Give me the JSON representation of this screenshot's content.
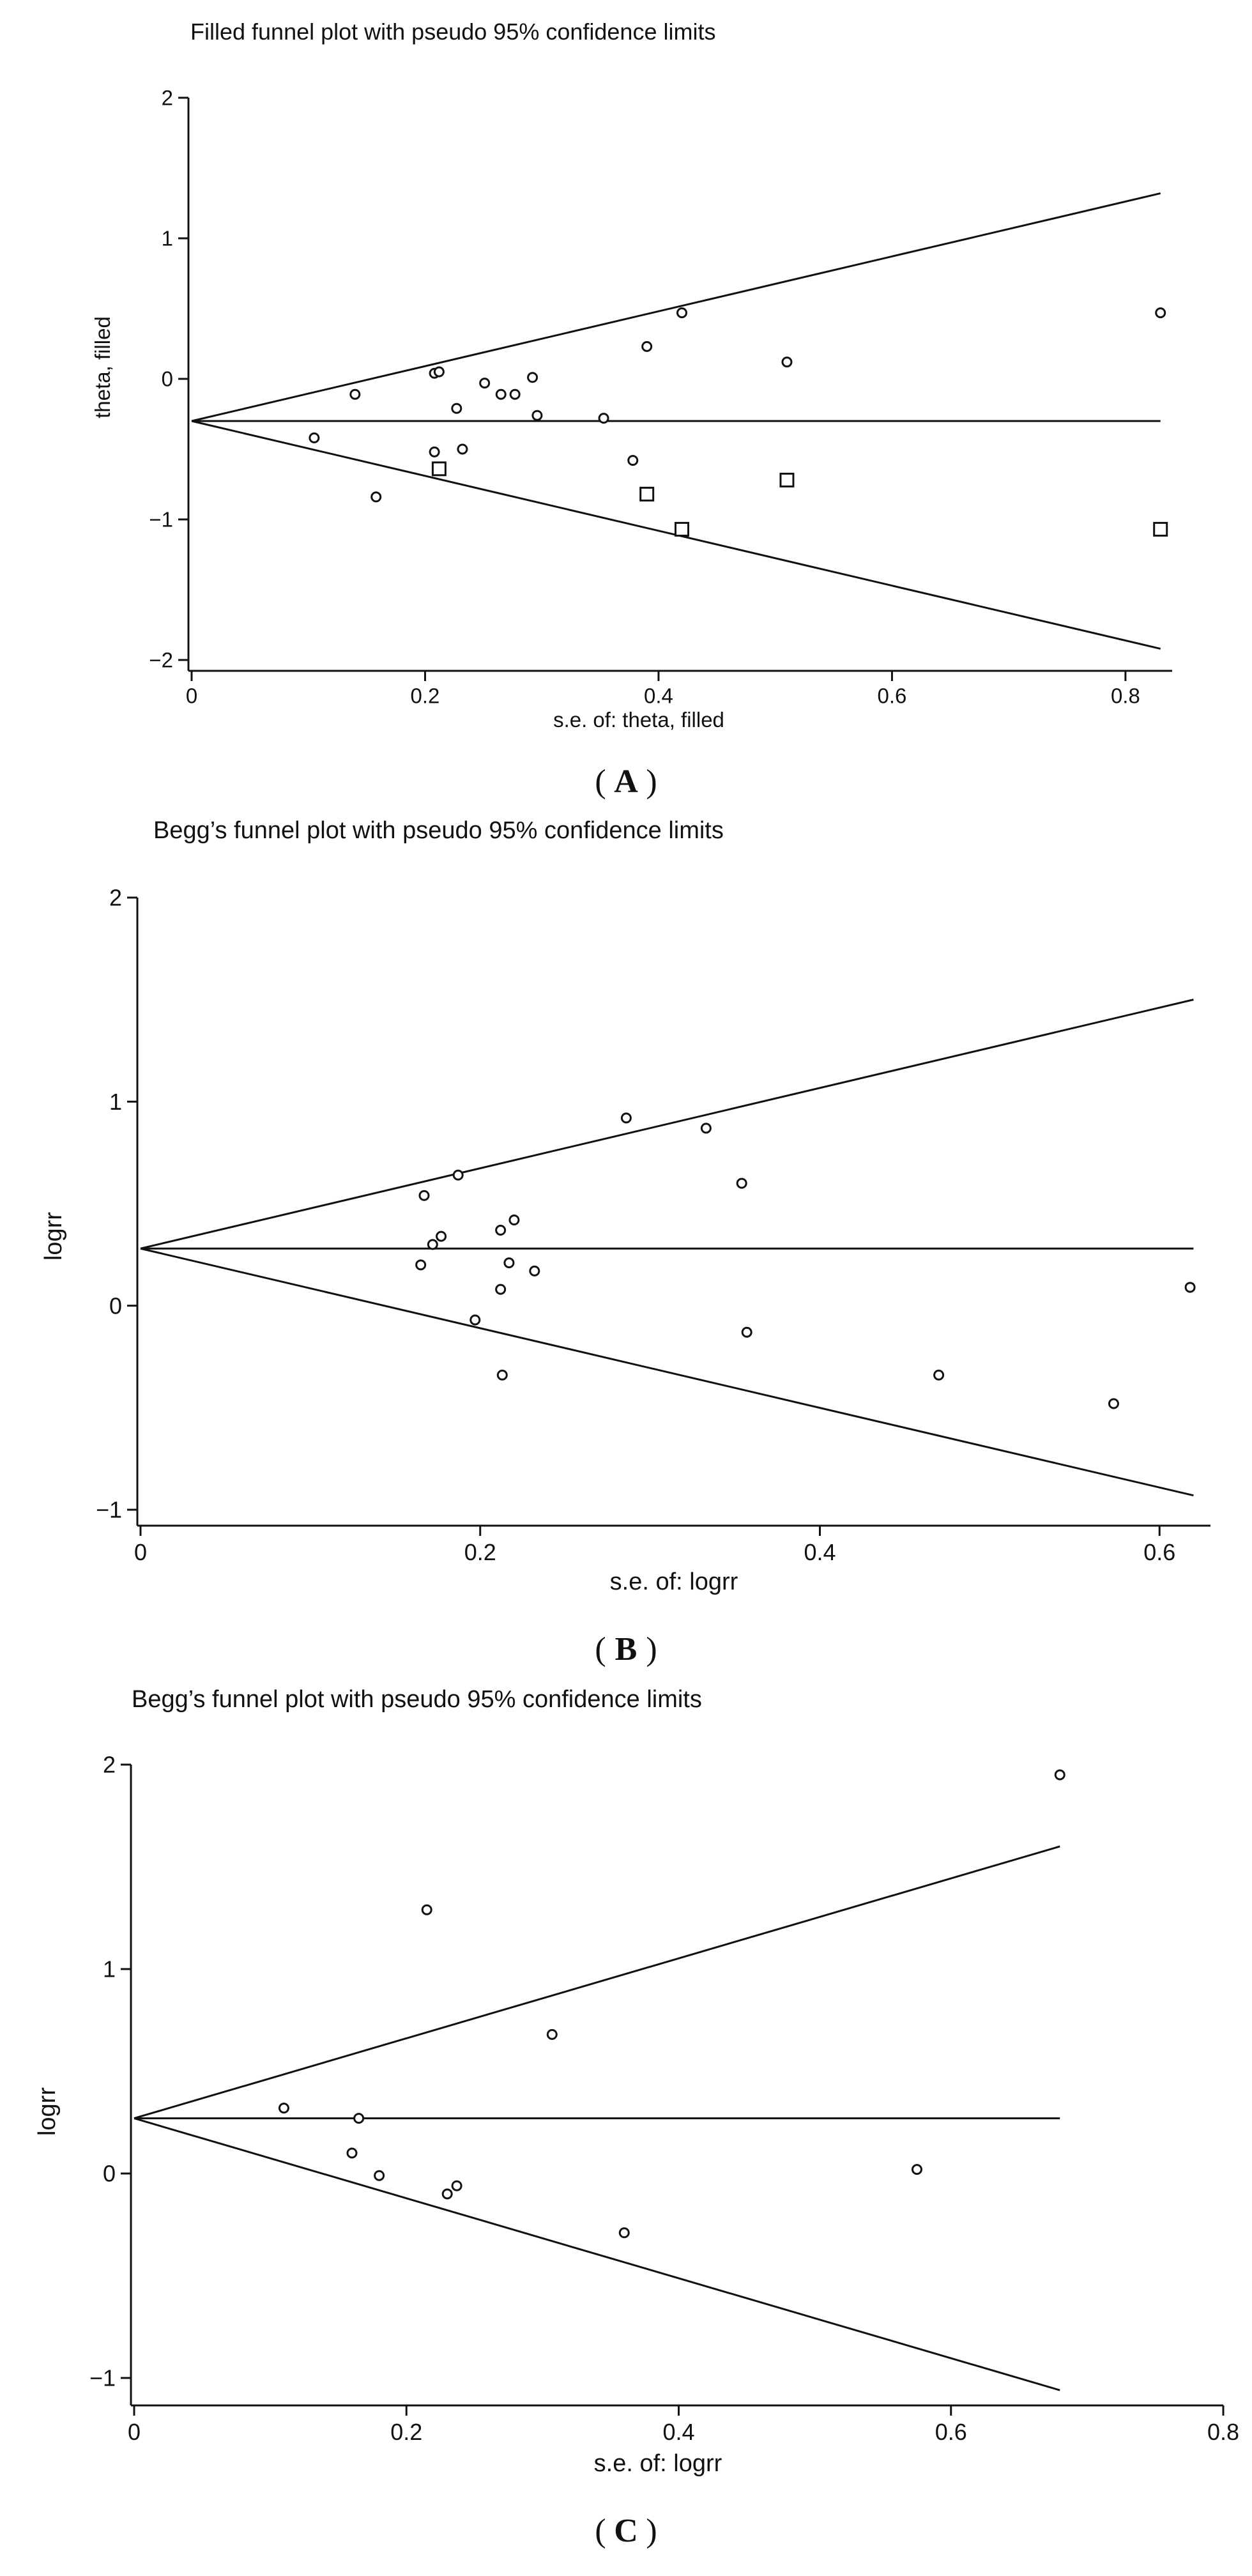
{
  "chart_data": [
    {
      "type": "scatter",
      "panel": "A",
      "title": "Filled funnel plot with pseudo 95% confidence limits",
      "xlabel": "s.e. of: theta, filled",
      "ylabel": "theta, filled",
      "xlim": [
        0,
        0.84
      ],
      "ylim": [
        -2.1,
        2.15
      ],
      "xticks": [
        0,
        0.2,
        0.4,
        0.6,
        0.8
      ],
      "xtick_labels": [
        "0",
        "0.2",
        "0.4",
        "0.6",
        "0.8"
      ],
      "yticks": [
        -2,
        -1,
        0,
        1,
        2
      ],
      "ytick_labels": [
        "−2",
        "−1",
        "0",
        "1",
        "2"
      ],
      "pooled_estimate": -0.3,
      "funnel": {
        "x_end": 0.83,
        "upper_end": 1.32,
        "lower_end": -1.92
      },
      "series": [
        {
          "name": "observed studies",
          "marker": "circle",
          "points": [
            [
              0.105,
              -0.42
            ],
            [
              0.14,
              -0.11
            ],
            [
              0.158,
              -0.84
            ],
            [
              0.208,
              0.04
            ],
            [
              0.212,
              0.05
            ],
            [
              0.208,
              -0.52
            ],
            [
              0.227,
              -0.21
            ],
            [
              0.232,
              -0.5
            ],
            [
              0.251,
              -0.03
            ],
            [
              0.265,
              -0.11
            ],
            [
              0.277,
              -0.11
            ],
            [
              0.292,
              0.01
            ],
            [
              0.296,
              -0.26
            ],
            [
              0.353,
              -0.28
            ],
            [
              0.378,
              -0.58
            ],
            [
              0.39,
              0.23
            ],
            [
              0.42,
              0.47
            ],
            [
              0.51,
              0.12
            ],
            [
              0.83,
              0.47
            ]
          ]
        },
        {
          "name": "filled studies",
          "marker": "square",
          "points": [
            [
              0.212,
              -0.64
            ],
            [
              0.39,
              -0.82
            ],
            [
              0.42,
              -1.07
            ],
            [
              0.51,
              -0.72
            ],
            [
              0.83,
              -1.07
            ]
          ]
        }
      ]
    },
    {
      "type": "scatter",
      "panel": "B",
      "title": "Begg’s funnel plot with pseudo 95% confidence limits",
      "xlabel": "s.e. of: logrr",
      "ylabel": "logrr",
      "xlim": [
        0,
        0.63
      ],
      "ylim": [
        -1.1,
        2.1
      ],
      "xticks": [
        0,
        0.2,
        0.4,
        0.6
      ],
      "xtick_labels": [
        "0",
        "0.2",
        "0.4",
        "0.6"
      ],
      "yticks": [
        -1,
        0,
        1,
        2
      ],
      "ytick_labels": [
        "−1",
        "0",
        "1",
        "2"
      ],
      "pooled_estimate": 0.28,
      "funnel": {
        "x_end": 0.62,
        "upper_end": 1.5,
        "lower_end": -0.93
      },
      "series": [
        {
          "name": "studies",
          "marker": "circle",
          "points": [
            [
              0.165,
              0.2
            ],
            [
              0.167,
              0.54
            ],
            [
              0.172,
              0.3
            ],
            [
              0.177,
              0.34
            ],
            [
              0.187,
              0.64
            ],
            [
              0.197,
              -0.07
            ],
            [
              0.212,
              0.37
            ],
            [
              0.212,
              0.08
            ],
            [
              0.213,
              -0.34
            ],
            [
              0.217,
              0.21
            ],
            [
              0.22,
              0.42
            ],
            [
              0.232,
              0.17
            ],
            [
              0.286,
              0.92
            ],
            [
              0.333,
              0.87
            ],
            [
              0.354,
              0.6
            ],
            [
              0.357,
              -0.13
            ],
            [
              0.47,
              -0.34
            ],
            [
              0.573,
              -0.48
            ],
            [
              0.618,
              0.09
            ]
          ]
        }
      ]
    },
    {
      "type": "scatter",
      "panel": "C",
      "title": "Begg’s funnel plot with pseudo 95% confidence limits",
      "xlabel": "s.e. of: logrr",
      "ylabel": "logrr",
      "xlim": [
        0,
        0.8
      ],
      "ylim": [
        -1.15,
        2.1
      ],
      "xticks": [
        0,
        0.2,
        0.4,
        0.6,
        0.8
      ],
      "xtick_labels": [
        "0",
        "0.2",
        "0.4",
        "0.6",
        "0.8"
      ],
      "yticks": [
        -1,
        0,
        1,
        2
      ],
      "ytick_labels": [
        "−1",
        "0",
        "1",
        "2"
      ],
      "pooled_estimate": 0.27,
      "funnel": {
        "x_end": 0.68,
        "upper_end": 1.6,
        "lower_end": -1.06
      },
      "series": [
        {
          "name": "studies",
          "marker": "circle",
          "points": [
            [
              0.11,
              0.32
            ],
            [
              0.16,
              0.1
            ],
            [
              0.165,
              0.27
            ],
            [
              0.18,
              -0.01
            ],
            [
              0.215,
              1.29
            ],
            [
              0.23,
              -0.1
            ],
            [
              0.237,
              -0.06
            ],
            [
              0.307,
              0.68
            ],
            [
              0.36,
              -0.29
            ],
            [
              0.575,
              0.02
            ],
            [
              0.68,
              1.95
            ]
          ]
        }
      ]
    }
  ]
}
